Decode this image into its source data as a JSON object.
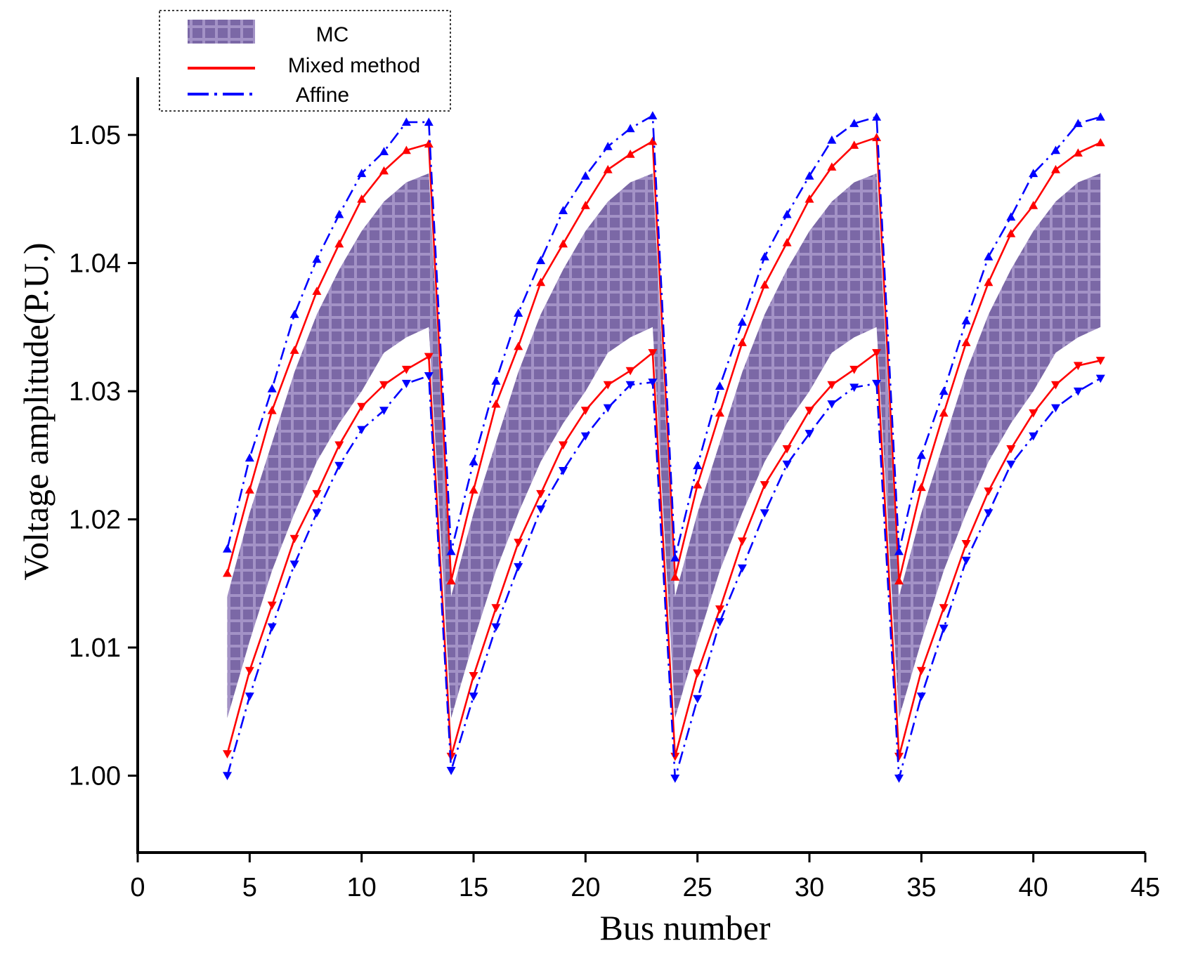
{
  "chart_data": {
    "type": "line",
    "title": "",
    "xlabel": "Bus number",
    "ylabel": "Voltage amplitude(P.U.)",
    "xlim": [
      0,
      45
    ],
    "ylim": [
      0.994,
      1.0545
    ],
    "xticks": [
      0,
      5,
      10,
      15,
      20,
      25,
      30,
      35,
      40,
      45
    ],
    "xtick_labels": [
      "0",
      "5",
      "10",
      "15",
      "20",
      "25",
      "30",
      "35",
      "40",
      "45"
    ],
    "yticks": [
      1.0,
      1.01,
      1.02,
      1.03,
      1.04,
      1.05
    ],
    "ytick_labels": [
      "1.00",
      "1.01",
      "1.02",
      "1.03",
      "1.04",
      "1.05"
    ],
    "grid": false,
    "legend_position": "top-left",
    "legend": [
      "MC",
      "Mixed method",
      "Affine"
    ],
    "x": [
      4,
      5,
      6,
      7,
      8,
      9,
      10,
      11,
      12,
      13,
      14,
      15,
      16,
      17,
      18,
      19,
      20,
      21,
      22,
      23,
      24,
      25,
      26,
      27,
      28,
      29,
      30,
      31,
      32,
      33,
      34,
      35,
      36,
      37,
      38,
      39,
      40,
      41,
      42,
      43
    ],
    "mc_band": {
      "name": "MC",
      "color": "#7b68a6",
      "upper": [
        1.014,
        1.0205,
        1.026,
        1.0315,
        1.036,
        1.0395,
        1.0425,
        1.0448,
        1.0463,
        1.047,
        1.014,
        1.0205,
        1.026,
        1.0315,
        1.036,
        1.0395,
        1.0425,
        1.0448,
        1.0463,
        1.047,
        1.014,
        1.0205,
        1.026,
        1.0315,
        1.036,
        1.0395,
        1.0425,
        1.0448,
        1.0463,
        1.047,
        1.014,
        1.0205,
        1.026,
        1.0315,
        1.036,
        1.0395,
        1.0425,
        1.0448,
        1.0463,
        1.047
      ],
      "lower": [
        1.0045,
        1.0105,
        1.016,
        1.0205,
        1.0245,
        1.0275,
        1.03,
        1.033,
        1.0342,
        1.035,
        1.0045,
        1.0105,
        1.016,
        1.0205,
        1.0245,
        1.0275,
        1.03,
        1.033,
        1.0342,
        1.035,
        1.0045,
        1.0105,
        1.016,
        1.0205,
        1.0245,
        1.0275,
        1.03,
        1.033,
        1.0342,
        1.035,
        1.0045,
        1.0105,
        1.016,
        1.0205,
        1.0245,
        1.0275,
        1.03,
        1.033,
        1.0342,
        1.035
      ]
    },
    "series": [
      {
        "name": "Mixed method",
        "color": "#ff0000",
        "style": "solid",
        "upper": [
          1.0158,
          1.0223,
          1.0285,
          1.0332,
          1.0378,
          1.0415,
          1.045,
          1.0472,
          1.0488,
          1.0493,
          1.0152,
          1.0223,
          1.029,
          1.0335,
          1.0385,
          1.0415,
          1.0445,
          1.0473,
          1.0485,
          1.0495,
          1.0155,
          1.0227,
          1.0283,
          1.0338,
          1.0383,
          1.0416,
          1.045,
          1.0475,
          1.0492,
          1.0498,
          1.0152,
          1.0225,
          1.0283,
          1.0338,
          1.0385,
          1.0423,
          1.0445,
          1.0473,
          1.0486,
          1.0494
        ],
        "lower": [
          1.0017,
          1.0082,
          1.0133,
          1.0185,
          1.022,
          1.0258,
          1.0288,
          1.0305,
          1.0317,
          1.0327,
          1.0015,
          1.0078,
          1.0131,
          1.0182,
          1.022,
          1.0258,
          1.0285,
          1.0305,
          1.0316,
          1.033,
          1.0015,
          1.008,
          1.013,
          1.0183,
          1.0227,
          1.0255,
          1.0285,
          1.0305,
          1.0317,
          1.033,
          1.0015,
          1.0082,
          1.0131,
          1.0181,
          1.0222,
          1.0255,
          1.0283,
          1.0305,
          1.032,
          1.0324
        ]
      },
      {
        "name": "Affine",
        "color": "#0000ff",
        "style": "dashdot",
        "upper": [
          1.0177,
          1.0248,
          1.0302,
          1.036,
          1.0403,
          1.0438,
          1.047,
          1.0487,
          1.051,
          1.051,
          1.0175,
          1.0245,
          1.0308,
          1.0361,
          1.0402,
          1.0441,
          1.0468,
          1.0491,
          1.0505,
          1.0515,
          1.017,
          1.0242,
          1.0304,
          1.0354,
          1.0405,
          1.0438,
          1.0468,
          1.0496,
          1.0509,
          1.0514,
          1.0175,
          1.025,
          1.03,
          1.0355,
          1.0405,
          1.0436,
          1.047,
          1.0488,
          1.0509,
          1.0514
        ],
        "lower": [
          1.0,
          1.0062,
          1.0116,
          1.0165,
          1.0205,
          1.0242,
          1.027,
          1.0285,
          1.0306,
          1.0312,
          1.0004,
          1.0062,
          1.0116,
          1.0163,
          1.0208,
          1.0238,
          1.0265,
          1.0287,
          1.0305,
          1.0307,
          0.9998,
          1.006,
          1.012,
          1.0162,
          1.0205,
          1.0243,
          1.0267,
          1.029,
          1.0303,
          1.0306,
          0.9998,
          1.0062,
          1.0115,
          1.0168,
          1.0205,
          1.0243,
          1.0265,
          1.0287,
          1.03,
          1.031
        ]
      }
    ]
  }
}
